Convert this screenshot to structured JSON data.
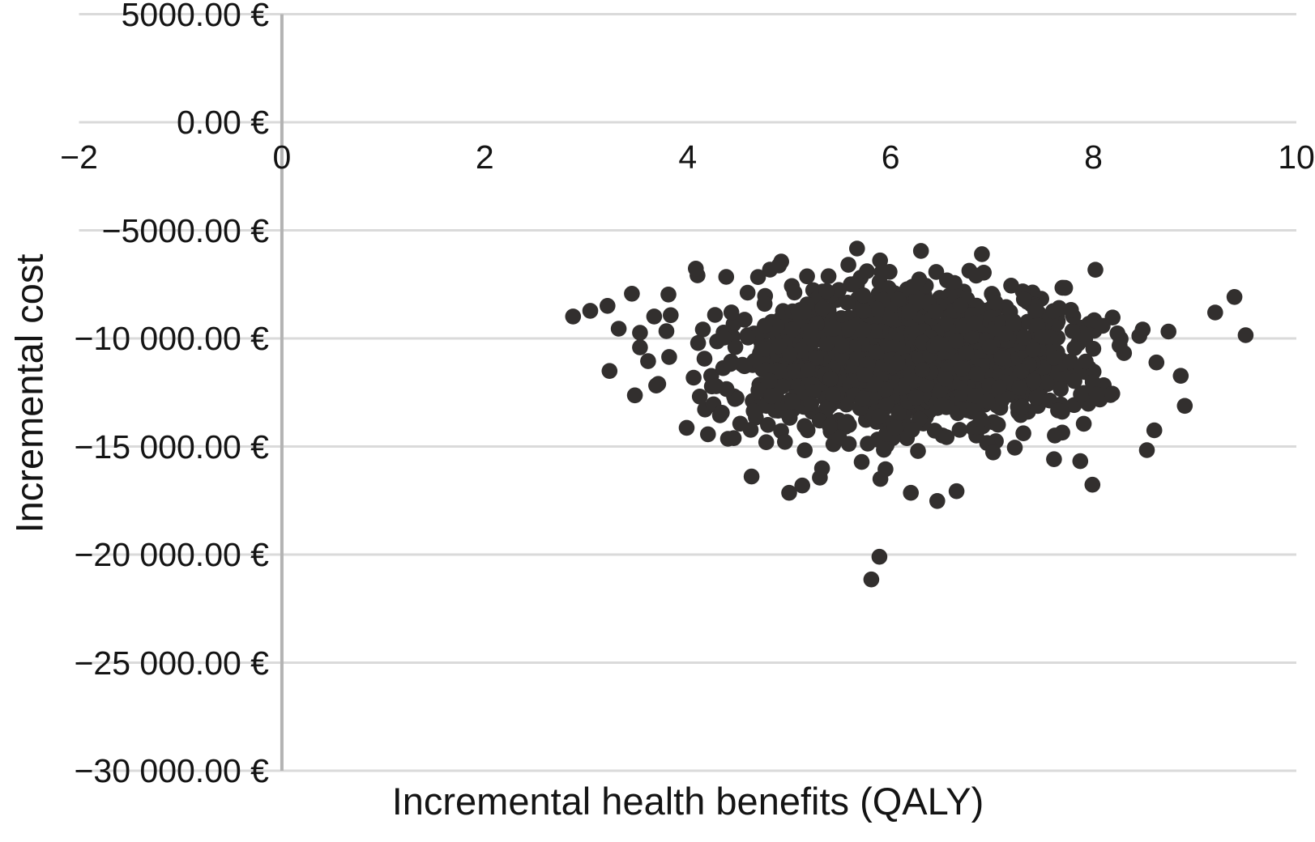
{
  "figure": {
    "background": "#ffffff"
  },
  "chart_data": {
    "type": "scatter",
    "title": "",
    "xlabel": "Incremental health benefits (QALY)",
    "ylabel": "Incremental cost",
    "xlim": [
      -2,
      10
    ],
    "ylim": [
      -30000,
      5000
    ],
    "grid": "horizontal-only",
    "legend": "none",
    "x_ticks": [
      {
        "value": -2,
        "label": "−2"
      },
      {
        "value": 0,
        "label": "0"
      },
      {
        "value": 2,
        "label": "2"
      },
      {
        "value": 4,
        "label": "4"
      },
      {
        "value": 6,
        "label": "6"
      },
      {
        "value": 8,
        "label": "8"
      },
      {
        "value": 10,
        "label": "10"
      }
    ],
    "y_ticks": [
      {
        "value": 5000,
        "label": "5000.00 €"
      },
      {
        "value": 0,
        "label": "0.00 €"
      },
      {
        "value": -5000,
        "label": "−5000.00 €"
      },
      {
        "value": -10000,
        "label": "−10 000.00 €"
      },
      {
        "value": -15000,
        "label": "−15 000.00 €"
      },
      {
        "value": -20000,
        "label": "−20 000.00 €"
      },
      {
        "value": -25000,
        "label": "−25 000.00 €"
      },
      {
        "value": -30000,
        "label": "−30 000.00 €"
      }
    ],
    "colors": {
      "point": "#322f2e",
      "gridline": "#dadada",
      "axis_line": "#b3b3b3",
      "text": "#141414"
    },
    "point_radius_px": 9.8,
    "cloud": {
      "comment": "dense Monte-Carlo cloud of incremental cost-effectiveness pairs",
      "seed": 101,
      "n": 1250,
      "center_x": 6.2,
      "center_y": -10850,
      "sigma_x": 0.85,
      "sigma_y": 1700,
      "clip_sigma": 2.6
    },
    "fringe": {
      "seed": 202,
      "n": 100,
      "center_x": 6.2,
      "center_y": -10900,
      "sigma_x": 1.18,
      "sigma_y": 2450,
      "clip_sigma": 3.0,
      "x_range": [
        2.85,
        9.55
      ],
      "y_range": [
        -18300,
        -5650
      ]
    },
    "outlier_points": [
      [
        2.87,
        -8985
      ],
      [
        3.04,
        -8722
      ],
      [
        3.21,
        -8496
      ],
      [
        3.45,
        -7932
      ],
      [
        3.81,
        -7970
      ],
      [
        4.08,
        -6771
      ],
      [
        3.32,
        -9549
      ],
      [
        3.53,
        -9737
      ],
      [
        3.67,
        -8985
      ],
      [
        3.79,
        -9662
      ],
      [
        3.23,
        -11504
      ],
      [
        3.53,
        -10414
      ],
      [
        3.61,
        -11053
      ],
      [
        3.69,
        -12180
      ],
      [
        3.48,
        -12632
      ],
      [
        3.71,
        -12105
      ],
      [
        3.99,
        -14135
      ],
      [
        4.2,
        -14436
      ],
      [
        4.63,
        -16391
      ],
      [
        5.0,
        -17143
      ],
      [
        5.13,
        -16805
      ],
      [
        5.9,
        -16500
      ],
      [
        5.95,
        -16050
      ],
      [
        6.2,
        -17143
      ],
      [
        6.46,
        -17519
      ],
      [
        6.65,
        -17068
      ],
      [
        7.87,
        -15677
      ],
      [
        7.99,
        -16767
      ],
      [
        5.89,
        -20100
      ],
      [
        5.81,
        -21150
      ],
      [
        9.2,
        -8800
      ],
      [
        9.5,
        -9850
      ],
      [
        8.86,
        -11729
      ],
      [
        8.9,
        -13120
      ],
      [
        8.6,
        -14250
      ],
      [
        5.67,
        -5843
      ],
      [
        6.3,
        -5950
      ],
      [
        6.9,
        -6100
      ],
      [
        4.9,
        -6629
      ],
      [
        4.38,
        -7154
      ]
    ]
  }
}
